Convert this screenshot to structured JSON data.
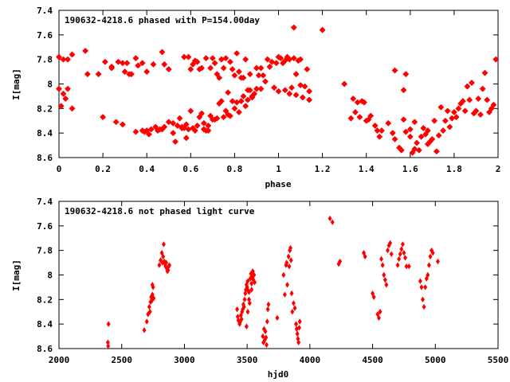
{
  "chart_data": [
    {
      "type": "scatter",
      "title": "190632-4218.6 phased with P=154.00day",
      "xlabel": "phase",
      "ylabel": "I[mag]",
      "xlim": [
        0,
        2
      ],
      "ylim": [
        8.6,
        7.4
      ],
      "y_inverted": true,
      "xticks": [
        "0",
        "0.2",
        "0.4",
        "0.6",
        "0.8",
        "1",
        "1.2",
        "1.4",
        "1.6",
        "1.8",
        "2"
      ],
      "yticks": [
        "7.4",
        "7.6",
        "7.8",
        "8",
        "8.2",
        "8.4",
        "8.6"
      ],
      "marker": "star",
      "color": "#ff0000",
      "points": [
        [
          0.0,
          8.04
        ],
        [
          0.01,
          8.18
        ],
        [
          0.02,
          8.08
        ],
        [
          0.03,
          8.12
        ],
        [
          0.04,
          8.04
        ],
        [
          0.06,
          8.2
        ],
        [
          0.06,
          7.76
        ],
        [
          0.0,
          7.78
        ],
        [
          0.02,
          7.8
        ],
        [
          0.04,
          7.8
        ],
        [
          0.12,
          7.73
        ],
        [
          0.13,
          7.92
        ],
        [
          0.18,
          7.92
        ],
        [
          0.2,
          8.27
        ],
        [
          0.21,
          7.82
        ],
        [
          0.24,
          7.86
        ],
        [
          0.24,
          7.87
        ],
        [
          0.26,
          8.31
        ],
        [
          0.27,
          7.82
        ],
        [
          0.29,
          8.33
        ],
        [
          0.29,
          7.83
        ],
        [
          0.3,
          7.9
        ],
        [
          0.31,
          7.83
        ],
        [
          0.32,
          7.92
        ],
        [
          0.33,
          7.92
        ],
        [
          0.35,
          8.39
        ],
        [
          0.35,
          7.79
        ],
        [
          0.36,
          7.85
        ],
        [
          0.38,
          7.83
        ],
        [
          0.38,
          8.38
        ],
        [
          0.39,
          8.39
        ],
        [
          0.4,
          8.38
        ],
        [
          0.4,
          7.9
        ],
        [
          0.41,
          8.41
        ],
        [
          0.42,
          8.37
        ],
        [
          0.43,
          7.84
        ],
        [
          0.44,
          8.35
        ],
        [
          0.45,
          8.38
        ],
        [
          0.46,
          8.37
        ],
        [
          0.47,
          8.37
        ],
        [
          0.47,
          7.74
        ],
        [
          0.48,
          8.35
        ],
        [
          0.48,
          7.84
        ],
        [
          0.5,
          8.31
        ],
        [
          0.5,
          7.88
        ],
        [
          0.52,
          8.4
        ],
        [
          0.52,
          8.32
        ],
        [
          0.53,
          8.47
        ],
        [
          0.54,
          8.34
        ],
        [
          0.55,
          8.28
        ],
        [
          0.56,
          8.35
        ],
        [
          0.56,
          8.36
        ],
        [
          0.57,
          8.36
        ],
        [
          0.57,
          7.78
        ],
        [
          0.58,
          8.33
        ],
        [
          0.58,
          8.44
        ],
        [
          0.59,
          8.37
        ],
        [
          0.59,
          7.78
        ],
        [
          0.6,
          8.22
        ],
        [
          0.6,
          7.88
        ],
        [
          0.61,
          8.36
        ],
        [
          0.61,
          7.84
        ],
        [
          0.62,
          8.38
        ],
        [
          0.62,
          7.81
        ],
        [
          0.63,
          8.34
        ],
        [
          0.63,
          7.82
        ],
        [
          0.64,
          8.27
        ],
        [
          0.64,
          7.88
        ],
        [
          0.65,
          8.24
        ],
        [
          0.65,
          7.87
        ],
        [
          0.66,
          8.37
        ],
        [
          0.66,
          8.32
        ],
        [
          0.67,
          8.38
        ],
        [
          0.67,
          7.79
        ],
        [
          0.68,
          8.38
        ],
        [
          0.68,
          8.34
        ],
        [
          0.69,
          8.26
        ],
        [
          0.69,
          7.87
        ],
        [
          0.7,
          8.29
        ],
        [
          0.7,
          7.79
        ],
        [
          0.71,
          8.29
        ],
        [
          0.71,
          7.83
        ],
        [
          0.72,
          8.28
        ],
        [
          0.72,
          7.92
        ],
        [
          0.73,
          8.16
        ],
        [
          0.73,
          7.95
        ],
        [
          0.74,
          8.14
        ],
        [
          0.74,
          7.8
        ],
        [
          0.75,
          8.27
        ],
        [
          0.75,
          7.87
        ],
        [
          0.76,
          8.22
        ],
        [
          0.76,
          7.79
        ],
        [
          0.77,
          8.25
        ],
        [
          0.77,
          8.07
        ],
        [
          0.78,
          8.26
        ],
        [
          0.78,
          7.82
        ],
        [
          0.79,
          8.14
        ],
        [
          0.79,
          7.88
        ],
        [
          0.8,
          8.2
        ],
        [
          0.8,
          7.93
        ],
        [
          0.81,
          8.15
        ],
        [
          0.81,
          7.75
        ],
        [
          0.82,
          8.23
        ],
        [
          0.82,
          7.9
        ],
        [
          0.83,
          8.14
        ],
        [
          0.83,
          7.95
        ],
        [
          0.84,
          8.1
        ],
        [
          0.84,
          7.95
        ],
        [
          0.85,
          8.18
        ],
        [
          0.85,
          7.8
        ],
        [
          0.86,
          8.13
        ],
        [
          0.86,
          8.05
        ],
        [
          0.87,
          8.05
        ],
        [
          0.87,
          7.92
        ],
        [
          0.88,
          8.1
        ],
        [
          0.88,
          8.11
        ],
        [
          0.89,
          8.08
        ],
        [
          0.9,
          8.04
        ],
        [
          0.9,
          7.87
        ],
        [
          0.91,
          7.93
        ],
        [
          0.92,
          8.04
        ],
        [
          0.92,
          7.87
        ],
        [
          0.93,
          7.93
        ],
        [
          0.94,
          7.98
        ],
        [
          0.95,
          7.8
        ],
        [
          0.96,
          7.86
        ],
        [
          0.97,
          7.82
        ],
        [
          0.98,
          8.03
        ],
        [
          0.99,
          7.83
        ],
        [
          1.0,
          8.06
        ],
        [
          1.0,
          7.78
        ],
        [
          1.01,
          7.79
        ],
        [
          1.02,
          7.83
        ],
        [
          1.03,
          7.81
        ],
        [
          1.03,
          8.05
        ],
        [
          1.04,
          7.78
        ],
        [
          1.05,
          8.08
        ],
        [
          1.05,
          7.8
        ],
        [
          1.06,
          8.03
        ],
        [
          1.07,
          7.79
        ],
        [
          1.07,
          7.54
        ],
        [
          1.08,
          8.09
        ],
        [
          1.08,
          7.92
        ],
        [
          1.09,
          7.81
        ],
        [
          1.1,
          8.01
        ],
        [
          1.1,
          7.8
        ],
        [
          1.11,
          8.11
        ],
        [
          1.12,
          8.02
        ],
        [
          1.13,
          7.88
        ],
        [
          1.14,
          8.06
        ],
        [
          1.14,
          8.13
        ],
        [
          1.2,
          7.56
        ],
        [
          1.3,
          8.0
        ],
        [
          1.33,
          8.28
        ],
        [
          1.34,
          8.12
        ],
        [
          1.35,
          8.23
        ],
        [
          1.36,
          8.15
        ],
        [
          1.37,
          8.27
        ],
        [
          1.38,
          8.14
        ],
        [
          1.39,
          8.15
        ],
        [
          1.4,
          8.3
        ],
        [
          1.41,
          8.29
        ],
        [
          1.42,
          8.26
        ],
        [
          1.44,
          8.34
        ],
        [
          1.45,
          8.38
        ],
        [
          1.46,
          8.43
        ],
        [
          1.47,
          8.38
        ],
        [
          1.5,
          8.32
        ],
        [
          1.52,
          8.4
        ],
        [
          1.53,
          8.45
        ],
        [
          1.53,
          7.89
        ],
        [
          1.55,
          8.52
        ],
        [
          1.56,
          8.54
        ],
        [
          1.57,
          8.29
        ],
        [
          1.57,
          8.05
        ],
        [
          1.58,
          8.39
        ],
        [
          1.58,
          7.92
        ],
        [
          1.6,
          8.43
        ],
        [
          1.6,
          8.37
        ],
        [
          1.61,
          8.56
        ],
        [
          1.62,
          8.53
        ],
        [
          1.62,
          8.31
        ],
        [
          1.63,
          8.48
        ],
        [
          1.64,
          8.54
        ],
        [
          1.65,
          8.43
        ],
        [
          1.66,
          8.36
        ],
        [
          1.67,
          8.41
        ],
        [
          1.68,
          8.49
        ],
        [
          1.68,
          8.38
        ],
        [
          1.69,
          8.47
        ],
        [
          1.7,
          8.45
        ],
        [
          1.71,
          8.3
        ],
        [
          1.72,
          8.55
        ],
        [
          1.73,
          8.42
        ],
        [
          1.74,
          8.19
        ],
        [
          1.75,
          8.38
        ],
        [
          1.76,
          8.3
        ],
        [
          1.77,
          8.22
        ],
        [
          1.78,
          8.35
        ],
        [
          1.79,
          8.28
        ],
        [
          1.8,
          8.23
        ],
        [
          1.81,
          8.27
        ],
        [
          1.82,
          8.2
        ],
        [
          1.83,
          8.16
        ],
        [
          1.84,
          8.14
        ],
        [
          1.85,
          8.22
        ],
        [
          1.86,
          8.02
        ],
        [
          1.87,
          8.13
        ],
        [
          1.88,
          7.99
        ],
        [
          1.89,
          8.24
        ],
        [
          1.9,
          8.22
        ],
        [
          1.91,
          8.12
        ],
        [
          1.92,
          8.25
        ],
        [
          1.93,
          8.04
        ],
        [
          1.94,
          7.91
        ],
        [
          1.95,
          8.13
        ],
        [
          1.96,
          8.23
        ],
        [
          1.97,
          8.2
        ],
        [
          1.98,
          8.17
        ],
        [
          1.99,
          7.8
        ]
      ]
    },
    {
      "type": "scatter",
      "title": "190632-4218.6 not phased light curve",
      "xlabel": "hjd0",
      "ylabel": "I[mag]",
      "xlim": [
        2000,
        5500
      ],
      "ylim": [
        8.6,
        7.4
      ],
      "y_inverted": true,
      "xticks": [
        "2000",
        "2500",
        "3000",
        "3500",
        "4000",
        "4500",
        "5000",
        "5500"
      ],
      "yticks": [
        "7.4",
        "7.6",
        "7.8",
        "8",
        "8.2",
        "8.4",
        "8.6"
      ],
      "marker": "diamond",
      "color": "#ff0000",
      "points": [
        [
          2390,
          8.55
        ],
        [
          2392,
          8.58
        ],
        [
          2395,
          8.4
        ],
        [
          2680,
          8.45
        ],
        [
          2700,
          8.38
        ],
        [
          2710,
          8.32
        ],
        [
          2720,
          8.26
        ],
        [
          2725,
          8.3
        ],
        [
          2730,
          8.22
        ],
        [
          2735,
          8.18
        ],
        [
          2740,
          8.21
        ],
        [
          2745,
          8.16
        ],
        [
          2750,
          8.1
        ],
        [
          2755,
          8.19
        ],
        [
          2745,
          8.08
        ],
        [
          2800,
          7.92
        ],
        [
          2810,
          7.88
        ],
        [
          2820,
          7.82
        ],
        [
          2825,
          7.9
        ],
        [
          2830,
          7.85
        ],
        [
          2835,
          7.75
        ],
        [
          2840,
          7.89
        ],
        [
          2845,
          7.91
        ],
        [
          2850,
          7.93
        ],
        [
          2855,
          7.9
        ],
        [
          2860,
          7.95
        ],
        [
          2865,
          7.97
        ],
        [
          2870,
          7.96
        ],
        [
          2875,
          7.93
        ],
        [
          2880,
          7.92
        ],
        [
          3420,
          8.28
        ],
        [
          3425,
          8.34
        ],
        [
          3430,
          8.37
        ],
        [
          3440,
          8.4
        ],
        [
          3445,
          8.38
        ],
        [
          3450,
          8.33
        ],
        [
          3455,
          8.36
        ],
        [
          3460,
          8.3
        ],
        [
          3465,
          8.28
        ],
        [
          3470,
          8.24
        ],
        [
          3475,
          8.26
        ],
        [
          3480,
          8.2
        ],
        [
          3485,
          8.15
        ],
        [
          3490,
          8.12
        ],
        [
          3495,
          8.08
        ],
        [
          3500,
          8.1
        ],
        [
          3505,
          8.05
        ],
        [
          3510,
          8.13
        ],
        [
          3515,
          8.2
        ],
        [
          3520,
          8.23
        ],
        [
          3525,
          8.03
        ],
        [
          3530,
          7.99
        ],
        [
          3535,
          8.07
        ],
        [
          3540,
          8.02
        ],
        [
          3545,
          7.97
        ],
        [
          3550,
          8.04
        ],
        [
          3555,
          8.0
        ],
        [
          3560,
          8.06
        ],
        [
          3495,
          8.42
        ],
        [
          3505,
          8.3
        ],
        [
          3515,
          8.14
        ],
        [
          3535,
          8.12
        ],
        [
          3625,
          8.5
        ],
        [
          3630,
          8.55
        ],
        [
          3635,
          8.44
        ],
        [
          3640,
          8.53
        ],
        [
          3645,
          8.46
        ],
        [
          3650,
          8.51
        ],
        [
          3655,
          8.57
        ],
        [
          3660,
          8.38
        ],
        [
          3665,
          8.28
        ],
        [
          3670,
          8.24
        ],
        [
          3740,
          8.35
        ],
        [
          3790,
          8.0
        ],
        [
          3800,
          8.16
        ],
        [
          3810,
          7.92
        ],
        [
          3815,
          7.9
        ],
        [
          3820,
          8.08
        ],
        [
          3830,
          7.85
        ],
        [
          3835,
          7.93
        ],
        [
          3840,
          7.8
        ],
        [
          3845,
          7.78
        ],
        [
          3850,
          7.88
        ],
        [
          3855,
          8.15
        ],
        [
          3860,
          8.3
        ],
        [
          3870,
          8.23
        ],
        [
          3880,
          8.27
        ],
        [
          3890,
          8.4
        ],
        [
          3895,
          8.44
        ],
        [
          3900,
          8.48
        ],
        [
          3905,
          8.52
        ],
        [
          3910,
          8.55
        ],
        [
          3915,
          8.43
        ],
        [
          3920,
          8.38
        ],
        [
          4160,
          7.54
        ],
        [
          4180,
          7.57
        ],
        [
          4230,
          7.91
        ],
        [
          4240,
          7.89
        ],
        [
          4430,
          7.82
        ],
        [
          4440,
          7.85
        ],
        [
          4500,
          8.15
        ],
        [
          4510,
          8.18
        ],
        [
          4540,
          8.32
        ],
        [
          4550,
          8.35
        ],
        [
          4560,
          8.3
        ],
        [
          4570,
          7.87
        ],
        [
          4580,
          7.92
        ],
        [
          4590,
          8.0
        ],
        [
          4600,
          8.04
        ],
        [
          4610,
          8.08
        ],
        [
          4620,
          7.8
        ],
        [
          4630,
          7.76
        ],
        [
          4640,
          7.74
        ],
        [
          4650,
          7.83
        ],
        [
          4700,
          7.92
        ],
        [
          4710,
          7.87
        ],
        [
          4720,
          7.83
        ],
        [
          4730,
          7.79
        ],
        [
          4740,
          7.75
        ],
        [
          4750,
          7.82
        ],
        [
          4760,
          7.86
        ],
        [
          4770,
          7.93
        ],
        [
          4790,
          7.93
        ],
        [
          4880,
          8.05
        ],
        [
          4890,
          8.1
        ],
        [
          4900,
          8.2
        ],
        [
          4910,
          8.26
        ],
        [
          4920,
          8.1
        ],
        [
          4930,
          8.03
        ],
        [
          4940,
          8.0
        ],
        [
          4950,
          7.92
        ],
        [
          4960,
          7.85
        ],
        [
          4970,
          7.8
        ],
        [
          4980,
          7.82
        ],
        [
          5020,
          7.89
        ]
      ]
    }
  ]
}
